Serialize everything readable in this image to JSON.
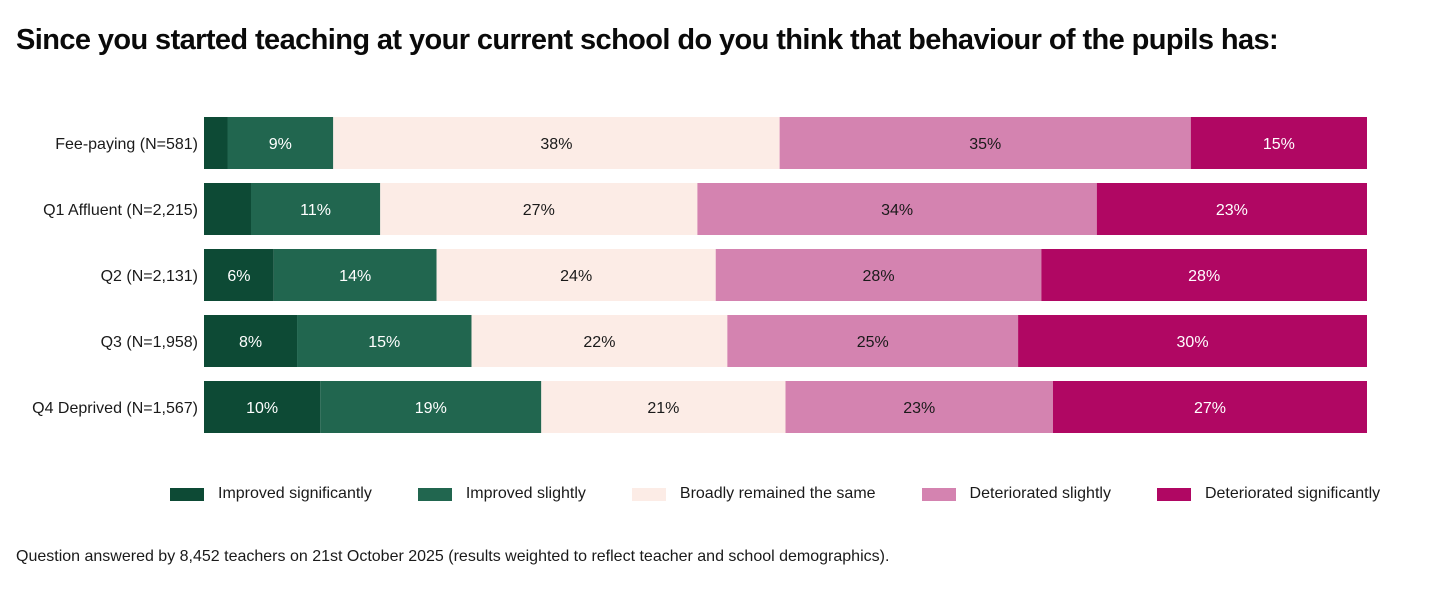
{
  "chart_data": {
    "type": "stacked-bar",
    "orientation": "horizontal",
    "title": "Since you started teaching at your current school do you think that behaviour of the pupils has:",
    "xlabel": "",
    "ylabel": "",
    "xlim": [
      0,
      100
    ],
    "grid": false,
    "legend_position": "bottom",
    "categories": [
      "Fee-paying (N=581)",
      "Q1 Affluent (N=2,215)",
      "Q2 (N=2,131)",
      "Q3 (N=1,958)",
      "Q4 Deprived (N=1,567)"
    ],
    "series": [
      {
        "name": "Improved significantly",
        "color": "#0d4a35",
        "label_color": "#ffffff",
        "values": [
          2,
          4,
          6,
          8,
          10
        ],
        "labels": [
          "",
          "",
          "6%",
          "8%",
          "10%"
        ]
      },
      {
        "name": "Improved slightly",
        "color": "#21664f",
        "label_color": "#ffffff",
        "values": [
          9,
          11,
          14,
          15,
          19
        ],
        "labels": [
          "9%",
          "11%",
          "14%",
          "15%",
          "19%"
        ]
      },
      {
        "name": "Broadly remained the same",
        "color": "#fcece6",
        "label_color": "#1a1a1a",
        "values": [
          38,
          27,
          24,
          22,
          21
        ],
        "labels": [
          "38%",
          "27%",
          "24%",
          "22%",
          "21%"
        ]
      },
      {
        "name": "Deteriorated slightly",
        "color": "#d483b0",
        "label_color": "#1a1a1a",
        "values": [
          35,
          34,
          28,
          25,
          23
        ],
        "labels": [
          "35%",
          "34%",
          "28%",
          "25%",
          "23%"
        ]
      },
      {
        "name": "Deteriorated significantly",
        "color": "#b00763",
        "label_color": "#ffffff",
        "values": [
          15,
          23,
          28,
          30,
          27
        ],
        "labels": [
          "15%",
          "23%",
          "28%",
          "30%",
          "27%"
        ]
      }
    ]
  },
  "footnote": "Question answered by 8,452 teachers on 21st October 2025 (results weighted to reflect teacher and school demographics)."
}
